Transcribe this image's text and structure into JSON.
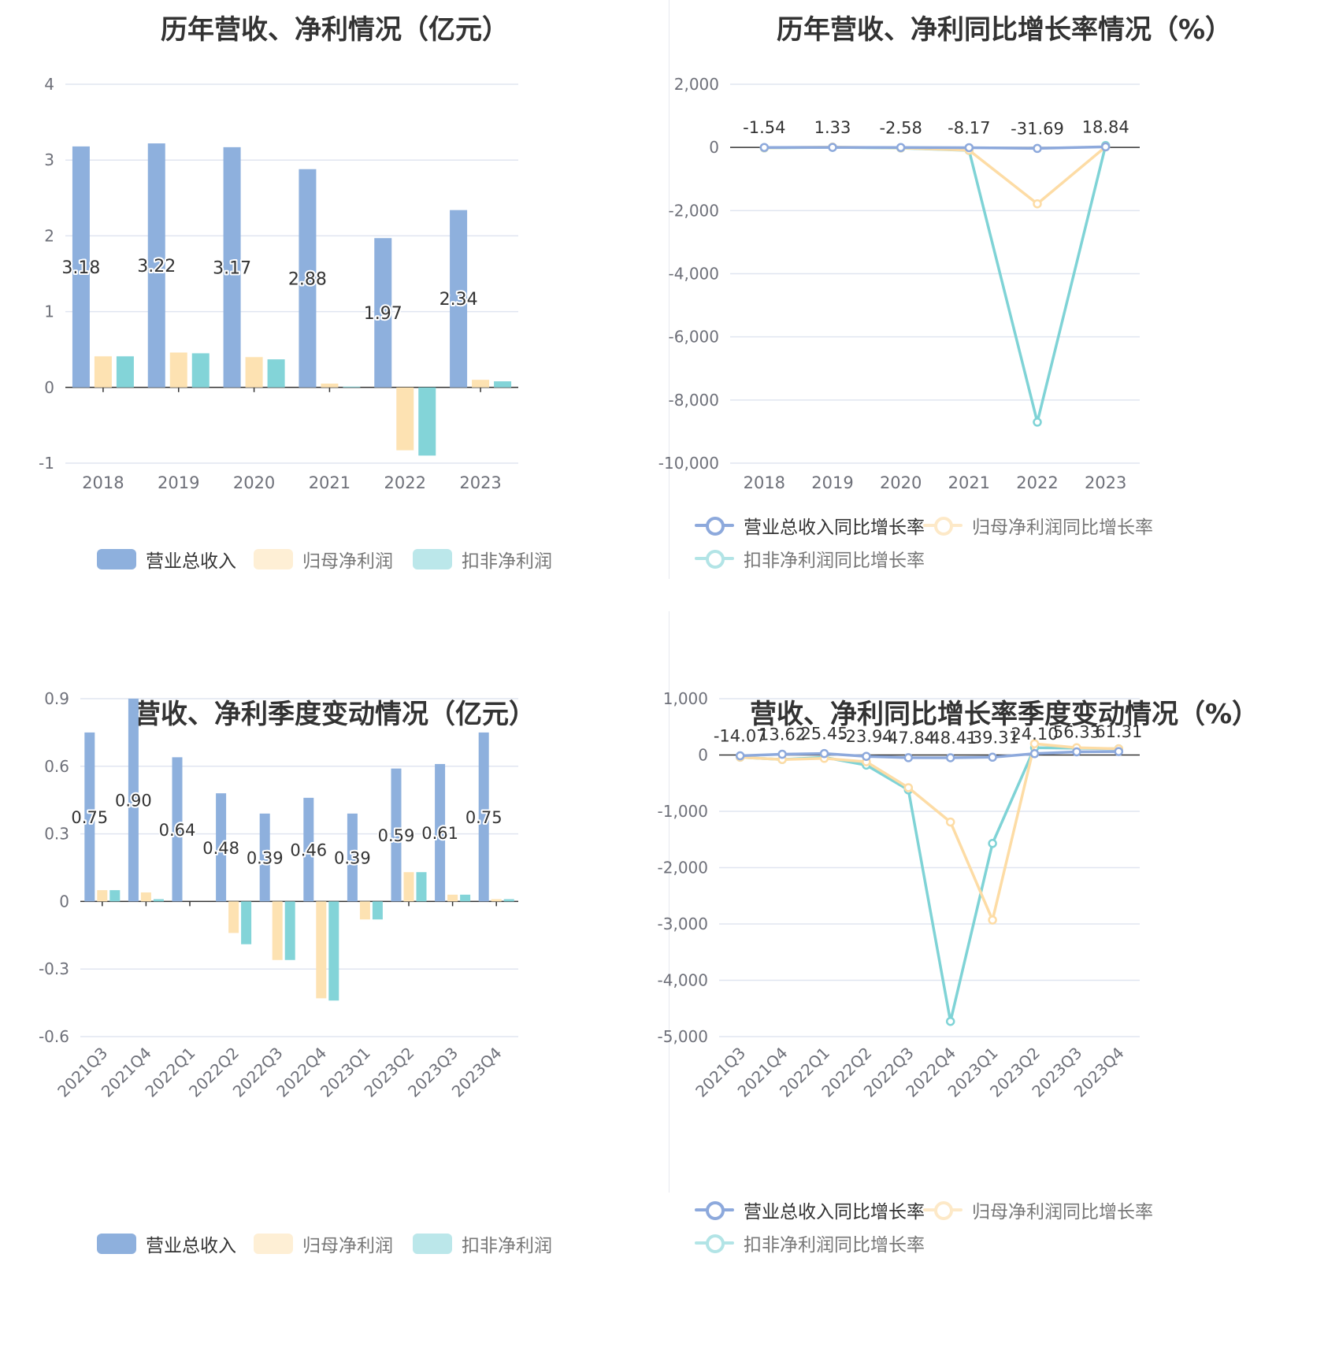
{
  "colors": {
    "revenue": "#8eb0dd",
    "net_profit": "#fde2b2",
    "deducted_profit": "#83d4d8",
    "revenue_line": "#8da9dc",
    "net_profit_line": "#fddca5",
    "deducted_line": "#7fd3d6",
    "grid": "#e0e5f0",
    "axis": "#333333",
    "tick_text": "#6e7079"
  },
  "chart_data": [
    {
      "type": "bar",
      "title": "历年营收、净利情况（亿元）",
      "categories": [
        "2018",
        "2019",
        "2020",
        "2021",
        "2022",
        "2023"
      ],
      "ylim": [
        -1,
        4
      ],
      "yticks": [
        -1,
        0,
        1,
        2,
        3,
        4
      ],
      "ytick_labels": [
        "-1",
        "0",
        "1",
        "2",
        "3",
        "4"
      ],
      "grid": true,
      "legend_position": "bottom",
      "series": [
        {
          "name": "营业总收入",
          "values": [
            3.18,
            3.22,
            3.17,
            2.88,
            1.97,
            2.34
          ],
          "labels": [
            "3.18",
            "3.22",
            "3.17",
            "2.88",
            "1.97",
            "2.34"
          ]
        },
        {
          "name": "归母净利润",
          "values": [
            0.41,
            0.46,
            0.4,
            0.05,
            -0.83,
            0.1
          ]
        },
        {
          "name": "扣非净利润",
          "values": [
            0.41,
            0.45,
            0.37,
            0.01,
            -0.9,
            0.08
          ]
        }
      ]
    },
    {
      "type": "line",
      "title": "历年营收、净利同比增长率情况（%）",
      "categories": [
        "2018",
        "2019",
        "2020",
        "2021",
        "2022",
        "2023"
      ],
      "ylim": [
        -10000,
        2000
      ],
      "yticks": [
        -10000,
        -8000,
        -6000,
        -4000,
        -2000,
        0,
        2000
      ],
      "ytick_labels": [
        "-10,000",
        "-8,000",
        "-6,000",
        "-4,000",
        "-2,000",
        "0",
        "2,000"
      ],
      "grid": true,
      "legend_position": "bottom",
      "series": [
        {
          "name": "营业总收入同比增长率",
          "values": [
            -1.54,
            1.33,
            -2.58,
            -8.17,
            -31.69,
            18.84
          ],
          "labels": [
            "-1.54",
            "1.33",
            "-2.58",
            "-8.17",
            "-31.69",
            "18.84"
          ]
        },
        {
          "name": "归母净利润同比增长率",
          "values": [
            -10,
            10,
            -15,
            -88,
            -1785,
            20
          ]
        },
        {
          "name": "扣非净利润同比增长率",
          "values": [
            -15,
            5,
            -20,
            -95,
            -8700,
            60
          ]
        }
      ]
    },
    {
      "type": "bar",
      "title": "营收、净利季度变动情况（亿元）",
      "categories": [
        "2021Q3",
        "2021Q4",
        "2022Q1",
        "2022Q2",
        "2022Q3",
        "2022Q4",
        "2023Q1",
        "2023Q2",
        "2023Q3",
        "2023Q4"
      ],
      "ylim": [
        -0.6,
        0.9
      ],
      "yticks": [
        -0.6,
        -0.3,
        0,
        0.3,
        0.6,
        0.9
      ],
      "ytick_labels": [
        "-0.6",
        "-0.3",
        "0",
        "0.3",
        "0.6",
        "0.9"
      ],
      "grid": true,
      "legend_position": "bottom",
      "series": [
        {
          "name": "营业总收入",
          "values": [
            0.75,
            0.9,
            0.64,
            0.48,
            0.39,
            0.46,
            0.39,
            0.59,
            0.61,
            0.75
          ],
          "labels": [
            "0.75",
            "0.90",
            "0.64",
            "0.48",
            "0.39",
            "0.46",
            "0.39",
            "0.59",
            "0.61",
            "0.75"
          ]
        },
        {
          "name": "归母净利润",
          "values": [
            0.05,
            0.04,
            0.0,
            -0.14,
            -0.26,
            -0.43,
            -0.08,
            0.13,
            0.03,
            0.01
          ]
        },
        {
          "name": "扣非净利润",
          "values": [
            0.05,
            0.01,
            0.0,
            -0.19,
            -0.26,
            -0.44,
            -0.08,
            0.13,
            0.03,
            0.01
          ]
        }
      ]
    },
    {
      "type": "line",
      "title": "营收、净利同比增长率季度变动情况（%）",
      "categories": [
        "2021Q3",
        "2021Q4",
        "2022Q1",
        "2022Q2",
        "2022Q3",
        "2022Q4",
        "2023Q1",
        "2023Q2",
        "2023Q3",
        "2023Q4"
      ],
      "ylim": [
        -5000,
        1000
      ],
      "yticks": [
        -5000,
        -4000,
        -3000,
        -2000,
        -1000,
        0,
        1000
      ],
      "ytick_labels": [
        "-5,000",
        "-4,000",
        "-3,000",
        "-2,000",
        "-1,000",
        "0",
        "1,000"
      ],
      "grid": true,
      "legend_position": "bottom",
      "series": [
        {
          "name": "营业总收入同比增长率",
          "values": [
            -14.07,
            13.62,
            25.45,
            -23.94,
            -47.84,
            -48.41,
            -39.31,
            24.1,
            56.33,
            61.31
          ],
          "labels": [
            "-14.07",
            "13.62",
            "25.45",
            "-23.94",
            "-47.84",
            "-48.41",
            "-39.31",
            "24.10",
            "56.33",
            "61.31"
          ]
        },
        {
          "name": "归母净利润同比增长率",
          "values": [
            -40,
            -80,
            -60,
            -120,
            -580,
            -1190,
            -2930,
            200,
            130,
            110
          ]
        },
        {
          "name": "扣非净利润同比增长率",
          "values": [
            -40,
            -80,
            -40,
            -180,
            -620,
            -4730,
            -1570,
            130,
            120,
            110
          ]
        }
      ]
    }
  ]
}
